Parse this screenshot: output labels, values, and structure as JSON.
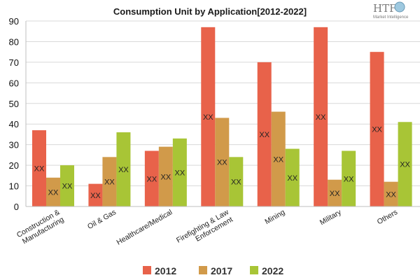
{
  "logo": {
    "brand": "HTF",
    "sub": "Market Intelligence"
  },
  "chart_data": {
    "type": "bar",
    "title": "Consumption Unit by  Application[2012-2022]",
    "xlabel": "",
    "ylabel": "",
    "ylim": [
      0,
      90
    ],
    "yticks": [
      0,
      10,
      20,
      30,
      40,
      50,
      60,
      70,
      80,
      90
    ],
    "grid": true,
    "legend_position": "bottom",
    "categories": [
      [
        "Construction &",
        "Manufacturing"
      ],
      [
        "Oil & Gas"
      ],
      [
        "Healthcare/Medical"
      ],
      [
        "Firefighting & Law",
        "Enforcement"
      ],
      [
        "Mining"
      ],
      [
        "Military"
      ],
      [
        "Others"
      ]
    ],
    "series": [
      {
        "name": "2012",
        "color": "#e8624a",
        "values": [
          37,
          11,
          27,
          87,
          70,
          87,
          75
        ]
      },
      {
        "name": "2017",
        "color": "#d19a4a",
        "values": [
          14,
          24,
          29,
          43,
          46,
          13,
          12
        ]
      },
      {
        "name": "2022",
        "color": "#a8c536",
        "values": [
          20,
          36,
          33,
          24,
          28,
          27,
          41
        ]
      }
    ],
    "data_label": "XX"
  }
}
